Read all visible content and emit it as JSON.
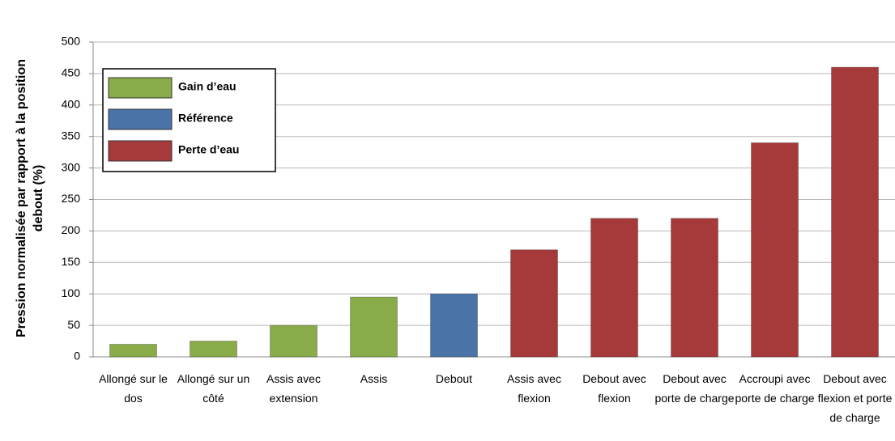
{
  "chart_data": {
    "type": "bar",
    "y_label": "Pression normalisée par rapport à la position debout (%)",
    "categories": [
      "Allongé sur le dos",
      "Allongé sur un côté",
      "Assis avec extension",
      "Assis",
      "Debout",
      "Assis avec flexion",
      "Debout avec flexion",
      "Debout avec porte de charge",
      "Accroupi avec porte de charge",
      "Debout avec flexion et porte de charge"
    ],
    "series": [
      {
        "name": "Gain d’eau",
        "color": "#8aab4a",
        "values": [
          20,
          25,
          50,
          95,
          null,
          null,
          null,
          null,
          null,
          null
        ]
      },
      {
        "name": "Référence",
        "color": "#4a73a8",
        "values": [
          null,
          null,
          null,
          null,
          100,
          null,
          null,
          null,
          null,
          null
        ]
      },
      {
        "name": "Perte d’eau",
        "color": "#a63a3a",
        "values": [
          null,
          null,
          null,
          null,
          null,
          170,
          220,
          220,
          340,
          460
        ]
      }
    ],
    "ylim": [
      0,
      500
    ],
    "yticks": [
      0,
      50,
      100,
      150,
      200,
      250,
      300,
      350,
      400,
      450,
      500
    ],
    "grid": true,
    "legend": "upper-left"
  }
}
